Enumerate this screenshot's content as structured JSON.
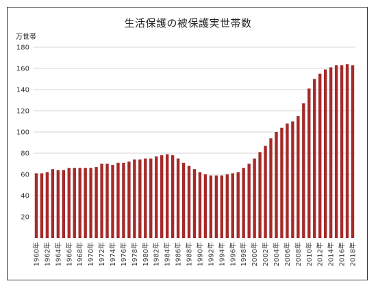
{
  "chart_data": {
    "type": "bar",
    "title": "生活保護の被保護実世帯数",
    "ylabel": "万世帯",
    "xlabel": "",
    "ylim": [
      0,
      180
    ],
    "yticks": [
      20,
      40,
      60,
      80,
      100,
      120,
      140,
      160,
      180
    ],
    "grid": true,
    "legend": "none",
    "bar_color": "#a52a2a",
    "grid_color": "#d4d4d4",
    "tick_label_suffix": "年",
    "tick_every": 2,
    "categories": [
      "1960",
      "1961",
      "1962",
      "1963",
      "1964",
      "1965",
      "1966",
      "1967",
      "1968",
      "1969",
      "1970",
      "1971",
      "1972",
      "1973",
      "1974",
      "1975",
      "1976",
      "1977",
      "1978",
      "1979",
      "1980",
      "1981",
      "1982",
      "1983",
      "1984",
      "1985",
      "1986",
      "1987",
      "1988",
      "1989",
      "1990",
      "1991",
      "1992",
      "1993",
      "1994",
      "1995",
      "1996",
      "1997",
      "1998",
      "1999",
      "2000",
      "2001",
      "2002",
      "2003",
      "2004",
      "2005",
      "2006",
      "2007",
      "2008",
      "2009",
      "2010",
      "2011",
      "2012",
      "2013",
      "2014",
      "2015",
      "2016",
      "2017",
      "2018"
    ],
    "values": [
      61,
      61,
      62,
      65,
      64,
      64,
      66,
      66,
      66,
      66,
      66,
      67,
      70,
      70,
      69,
      71,
      71,
      72,
      74,
      74,
      75,
      75,
      77,
      78,
      79,
      78,
      75,
      71,
      68,
      65,
      62,
      60,
      59,
      59,
      59,
      60,
      61,
      62,
      66,
      70,
      75,
      81,
      87,
      94,
      100,
      104,
      108,
      110,
      115,
      127,
      141,
      150,
      155,
      159,
      161,
      163,
      163,
      164,
      163
    ]
  }
}
